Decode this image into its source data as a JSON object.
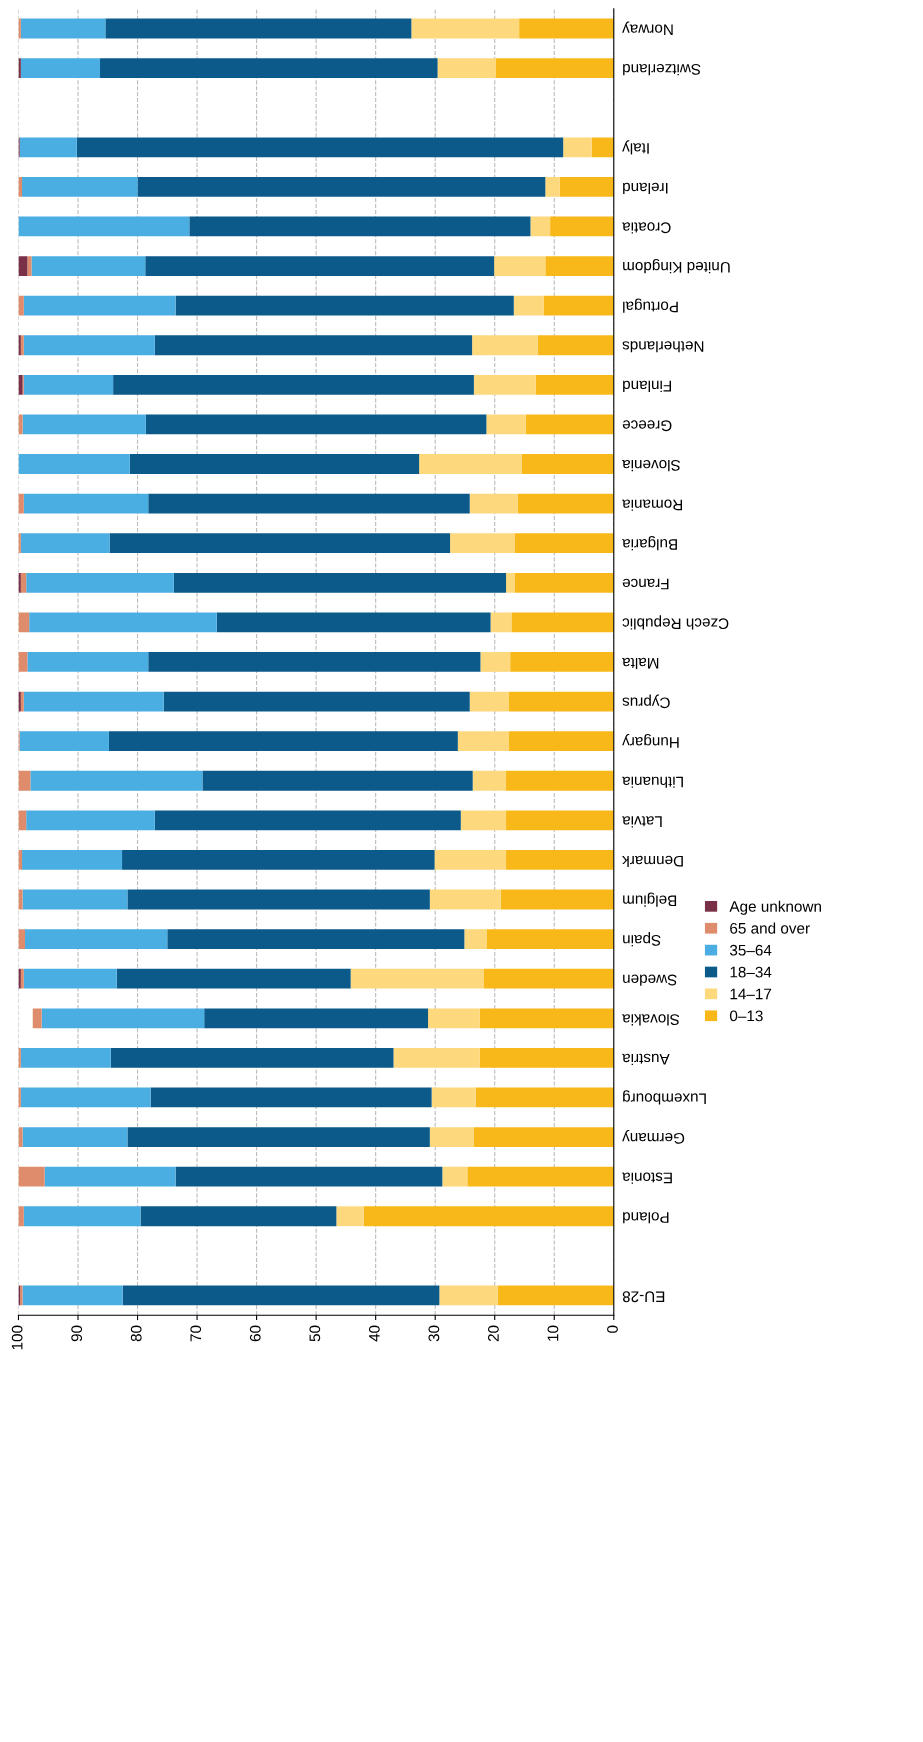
{
  "chart_data": {
    "type": "bar",
    "orientation": "horizontal",
    "stacked": true,
    "categories": [
      "Norway",
      "Switzerland",
      null,
      "Italy",
      "Ireland",
      "Croatia",
      "United Kingdom",
      "Portugal",
      "Netherlands",
      "Finland",
      "Greece",
      "Slovenia",
      "Romania",
      "Bulgaria",
      "France",
      "Czech Republic",
      "Malta",
      "Cyprus",
      "Hungary",
      "Lithuania",
      "Latvia",
      "Denmark",
      "Belgium",
      "Spain",
      "Sweden",
      "Slovakia",
      "Austria",
      "Luxembourg",
      "Germany",
      "Estonia",
      "Poland",
      null,
      "EU-28"
    ],
    "series": [
      {
        "name": "0–13",
        "color": "#f9b81a",
        "values": [
          15.9,
          19.8,
          null,
          3.7,
          9.1,
          10.7,
          11.5,
          11.8,
          12.8,
          13.1,
          14.8,
          15.5,
          16.1,
          16.6,
          16.6,
          17.2,
          17.4,
          17.6,
          17.6,
          18.1,
          18.1,
          18.1,
          19.0,
          21.3,
          21.8,
          22.5,
          22.5,
          23.2,
          23.5,
          24.6,
          42.0,
          null,
          19.5
        ]
      },
      {
        "name": "14–17",
        "color": "#fdd87c",
        "values": [
          18.1,
          9.8,
          null,
          4.8,
          2.4,
          3.3,
          8.6,
          5.0,
          11.0,
          10.4,
          6.6,
          17.2,
          8.1,
          10.9,
          1.5,
          3.5,
          5.0,
          6.6,
          8.6,
          5.6,
          7.6,
          12.0,
          11.9,
          3.8,
          22.4,
          8.7,
          14.5,
          7.4,
          7.4,
          4.2,
          4.6,
          null,
          9.8
        ]
      },
      {
        "name": "18–34",
        "color": "#0b5a8a",
        "values": [
          51.4,
          56.7,
          null,
          81.7,
          68.5,
          57.3,
          58.6,
          56.8,
          53.3,
          60.6,
          57.2,
          48.6,
          54.0,
          57.2,
          55.8,
          46.0,
          55.8,
          51.4,
          58.6,
          45.4,
          51.4,
          52.5,
          50.8,
          49.9,
          39.3,
          37.6,
          47.5,
          47.2,
          50.8,
          44.8,
          32.9,
          null,
          53.2
        ]
      },
      {
        "name": "35–64",
        "color": "#4aaee3",
        "values": [
          14.2,
          13.3,
          null,
          9.6,
          19.4,
          28.7,
          19.1,
          25.5,
          22.0,
          15.0,
          20.7,
          18.7,
          20.9,
          14.9,
          24.8,
          31.5,
          20.3,
          23.5,
          15.0,
          28.9,
          21.6,
          16.8,
          17.6,
          23.9,
          15.6,
          27.3,
          15.1,
          21.8,
          17.6,
          22.0,
          19.6,
          null,
          16.8
        ]
      },
      {
        "name": "65 and over",
        "color": "#df8c6c",
        "values": [
          0.4,
          0.0,
          null,
          0.0,
          0.6,
          0.0,
          0.7,
          0.9,
          0.5,
          0.2,
          0.7,
          0.0,
          0.9,
          0.4,
          0.9,
          1.8,
          1.5,
          0.5,
          0.2,
          2.0,
          1.3,
          0.6,
          0.7,
          1.1,
          0.5,
          1.5,
          0.4,
          0.4,
          0.7,
          4.4,
          0.9,
          null,
          0.4
        ]
      },
      {
        "name": "Age unknown",
        "color": "#7a3148",
        "values": [
          0.0,
          0.4,
          null,
          0.2,
          0.0,
          0.0,
          1.5,
          0.0,
          0.4,
          0.7,
          0.0,
          0.0,
          0.0,
          0.0,
          0.4,
          0.0,
          0.0,
          0.4,
          0.0,
          0.0,
          0.0,
          0.0,
          0.0,
          0.0,
          0.4,
          0.0,
          0.0,
          0.0,
          0.0,
          0.0,
          0.0,
          null,
          0.3
        ]
      }
    ],
    "xlim": [
      100,
      0
    ],
    "xticks": [
      0,
      10,
      20,
      30,
      40,
      50,
      60,
      70,
      80,
      90,
      100
    ],
    "grid": "x",
    "legend": "right"
  }
}
